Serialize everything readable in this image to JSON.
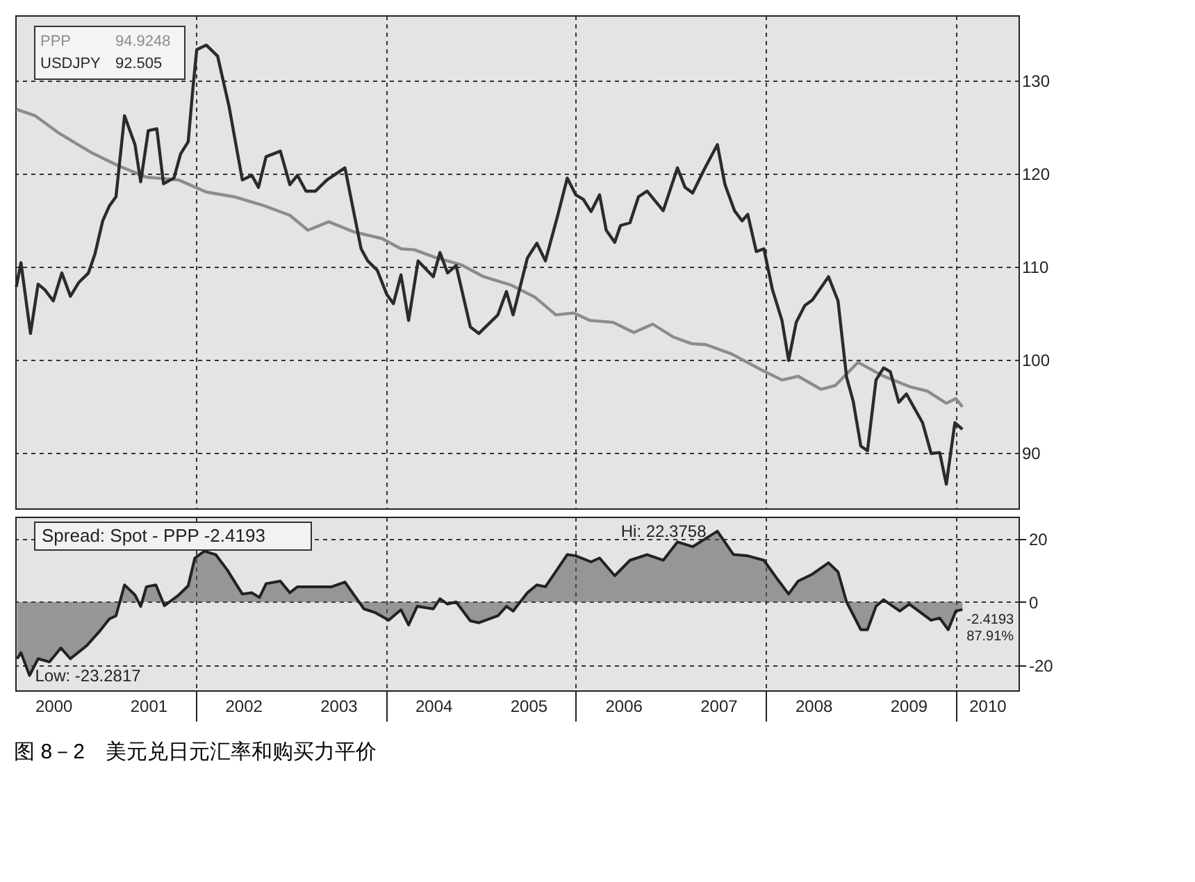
{
  "chart_data": [
    {
      "type": "line",
      "legend": "top left",
      "grid": true,
      "tick_labels": "y",
      "line_style": "solid",
      "xlim": [
        2000.1,
        2010.66
      ],
      "ylim": [
        84,
        137
      ],
      "xticks": [
        2002,
        2004,
        2006,
        2008,
        2010
      ],
      "yticks": [
        90,
        100,
        110,
        120,
        130
      ],
      "annotations": [
        "94.9248",
        "92.505"
      ],
      "series": [
        {
          "name": "PPP",
          "color": "#8c8c8c",
          "x": [
            2000.11,
            2000.31,
            2000.55,
            2000.89,
            2001.19,
            2001.48,
            2001.82,
            2002.11,
            2002.4,
            2002.7,
            2002.99,
            2003.18,
            2003.4,
            2003.67,
            2003.96,
            2004.16,
            2004.3,
            2004.54,
            2004.79,
            2005.03,
            2005.32,
            2005.57,
            2005.79,
            2005.98,
            2006.15,
            2006.39,
            2006.61,
            2006.81,
            2007.03,
            2007.22,
            2007.37,
            2007.64,
            2007.95,
            2008.17,
            2008.34,
            2008.58,
            2008.73,
            2008.97,
            2009.22,
            2009.51,
            2009.7,
            2009.9,
            2010.0,
            2010.07
          ],
          "values": [
            126.9,
            126.2,
            124.4,
            122.3,
            120.8,
            119.6,
            119.3,
            118.0,
            117.5,
            116.6,
            115.5,
            113.9,
            114.8,
            113.7,
            113.0,
            111.9,
            111.8,
            110.9,
            110.2,
            108.9,
            108.0,
            106.7,
            104.8,
            105.0,
            104.2,
            104.0,
            102.9,
            103.8,
            102.4,
            101.7,
            101.6,
            100.6,
            98.9,
            97.8,
            98.2,
            96.8,
            97.2,
            99.7,
            98.3,
            97.1,
            96.6,
            95.3,
            95.8,
            94.9
          ]
        },
        {
          "name": "USDJPY",
          "color": "#2b2b2b",
          "x": [
            2000.11,
            2000.16,
            2000.26,
            2000.34,
            2000.41,
            2000.5,
            2000.59,
            2000.68,
            2000.77,
            2000.87,
            2000.94,
            2001.02,
            2001.09,
            2001.16,
            2001.25,
            2001.36,
            2001.42,
            2001.5,
            2001.59,
            2001.66,
            2001.77,
            2001.84,
            2001.92,
            2001.97,
            2002.01,
            2002.11,
            2002.23,
            2002.35,
            2002.49,
            2002.59,
            2002.66,
            2002.74,
            2002.89,
            2002.99,
            2003.07,
            2003.16,
            2003.26,
            2003.38,
            2003.57,
            2003.74,
            2003.81,
            2003.91,
            2004.01,
            2004.08,
            2004.16,
            2004.24,
            2004.34,
            2004.5,
            2004.57,
            2004.65,
            2004.74,
            2004.89,
            2004.98,
            2005.18,
            2005.27,
            2005.34,
            2005.49,
            2005.59,
            2005.68,
            2005.81,
            2005.91,
            2006.0,
            2006.08,
            2006.16,
            2006.25,
            2006.32,
            2006.41,
            2006.47,
            2006.57,
            2006.66,
            2006.75,
            2006.92,
            2007.07,
            2007.15,
            2007.23,
            2007.36,
            2007.49,
            2007.57,
            2007.67,
            2007.75,
            2007.81,
            2007.9,
            2007.98,
            2008.07,
            2008.17,
            2008.24,
            2008.32,
            2008.41,
            2008.49,
            2008.66,
            2008.76,
            2008.85,
            2008.92,
            2009.0,
            2009.07,
            2009.16,
            2009.24,
            2009.31,
            2009.4,
            2009.48,
            2009.65,
            2009.74,
            2009.83,
            2009.9,
            2009.99,
            2010.07
          ],
          "values": [
            107.8,
            110.4,
            102.8,
            108.1,
            107.5,
            106.3,
            109.3,
            106.8,
            108.3,
            109.3,
            111.4,
            114.9,
            116.5,
            117.5,
            126.2,
            123.1,
            119.1,
            124.6,
            124.8,
            118.9,
            119.5,
            122.1,
            123.4,
            129.2,
            133.3,
            133.8,
            132.6,
            127.2,
            119.3,
            119.8,
            118.5,
            121.8,
            122.4,
            118.8,
            119.8,
            118.1,
            118.1,
            119.3,
            120.6,
            111.9,
            110.6,
            109.6,
            107.0,
            106.0,
            109.1,
            104.2,
            110.6,
            108.9,
            111.5,
            109.3,
            110.1,
            103.5,
            102.8,
            104.8,
            107.3,
            104.8,
            110.9,
            112.5,
            110.6,
            115.5,
            119.5,
            117.7,
            117.2,
            115.9,
            117.7,
            113.9,
            112.6,
            114.4,
            114.7,
            117.5,
            118.1,
            116.0,
            120.6,
            118.5,
            117.9,
            120.6,
            123.1,
            118.8,
            116.0,
            114.9,
            115.6,
            111.6,
            111.9,
            107.5,
            104.2,
            99.9,
            104.0,
            105.8,
            106.4,
            108.9,
            106.3,
            98.1,
            95.5,
            90.7,
            90.2,
            97.8,
            99.1,
            98.7,
            95.4,
            96.3,
            93.2,
            89.9,
            90.0,
            86.6,
            93.2,
            92.5
          ]
        }
      ]
    },
    {
      "type": "area",
      "title": "Spread: Spot - PPP  -2.4193",
      "grid": true,
      "xlim": [
        2000.1,
        2010.66
      ],
      "ylim": [
        -28,
        27
      ],
      "xticks": [
        {
          "value": 2000.5,
          "label": "2000"
        },
        {
          "value": 2001.5,
          "label": "2001"
        },
        {
          "value": 2002,
          "label": null
        },
        {
          "value": 2002.5,
          "label": "2002"
        },
        {
          "value": 2003.5,
          "label": "2003"
        },
        {
          "value": 2004,
          "label": null
        },
        {
          "value": 2004.5,
          "label": "2004"
        },
        {
          "value": 2005.5,
          "label": "2005"
        },
        {
          "value": 2006,
          "label": null
        },
        {
          "value": 2006.5,
          "label": "2006"
        },
        {
          "value": 2007.5,
          "label": "2007"
        },
        {
          "value": 2008,
          "label": null
        },
        {
          "value": 2008.5,
          "label": "2008"
        },
        {
          "value": 2009.5,
          "label": "2009"
        },
        {
          "value": 2010,
          "label": null
        },
        {
          "value": 2010.33,
          "label": "2010"
        }
      ],
      "yticks": [
        -20,
        0,
        20
      ],
      "annotations": [
        {
          "text": "Low: -23.2817",
          "x": 2000.25,
          "y": -23.3
        },
        {
          "text": "Hi: 22.3758",
          "x": 2007.49,
          "y": 22.4
        },
        {
          "text": "-2.4193",
          "x": 2010.07,
          "y": -2.4
        },
        {
          "text": "87.91%",
          "x": 2010.07,
          "y": -2.4
        },
        "图 8－2　美元兑日元汇率和购买力平价"
      ],
      "series": [
        {
          "color": "#555555",
          "x": [
            2000.12,
            2000.16,
            2000.25,
            2000.34,
            2000.46,
            2000.58,
            2000.68,
            2000.85,
            2000.99,
            2001.09,
            2001.16,
            2001.25,
            2001.36,
            2001.42,
            2001.48,
            2001.58,
            2001.67,
            2001.82,
            2001.92,
            2001.99,
            2002.09,
            2002.21,
            2002.33,
            2002.49,
            2002.59,
            2002.67,
            2002.74,
            2002.89,
            2002.99,
            2003.07,
            2003.18,
            2003.43,
            2003.57,
            2003.77,
            2003.89,
            2004.03,
            2004.16,
            2004.24,
            2004.33,
            2004.5,
            2004.57,
            2004.65,
            2004.74,
            2004.89,
            2004.98,
            2005.18,
            2005.27,
            2005.34,
            2005.49,
            2005.59,
            2005.68,
            2005.91,
            2006.0,
            2006.16,
            2006.25,
            2006.41,
            2006.57,
            2006.75,
            2006.92,
            2007.07,
            2007.23,
            2007.49,
            2007.66,
            2007.81,
            2007.98,
            2008.12,
            2008.24,
            2008.34,
            2008.49,
            2008.66,
            2008.76,
            2008.85,
            2009.0,
            2009.07,
            2009.16,
            2009.24,
            2009.41,
            2009.51,
            2009.74,
            2009.83,
            2009.92,
            2010.0,
            2010.07
          ],
          "values": [
            -18.0,
            -16.1,
            -23.3,
            -18.0,
            -19.0,
            -14.6,
            -18.0,
            -13.9,
            -9.2,
            -5.4,
            -4.4,
            5.4,
            2.2,
            -1.4,
            4.8,
            5.4,
            -1.2,
            2.2,
            5.1,
            13.9,
            16.1,
            15.0,
            10.2,
            2.5,
            2.9,
            1.4,
            5.8,
            6.6,
            2.9,
            4.8,
            4.8,
            4.8,
            6.3,
            -2.2,
            -3.4,
            -5.8,
            -2.5,
            -7.3,
            -1.4,
            -2.2,
            1.0,
            -0.7,
            0,
            -6.0,
            -6.6,
            -4.4,
            -1.4,
            -2.9,
            2.9,
            5.4,
            4.8,
            15.0,
            14.6,
            12.7,
            13.9,
            8.3,
            13.2,
            15.0,
            13.2,
            19.0,
            17.5,
            22.4,
            15.0,
            14.6,
            13.2,
            7.3,
            2.5,
            6.6,
            8.8,
            12.4,
            9.5,
            0,
            -8.8,
            -8.8,
            -1.4,
            0.7,
            -2.9,
            -0.7,
            -5.8,
            -5.1,
            -8.8,
            -2.9,
            -2.4
          ]
        }
      ]
    }
  ]
}
